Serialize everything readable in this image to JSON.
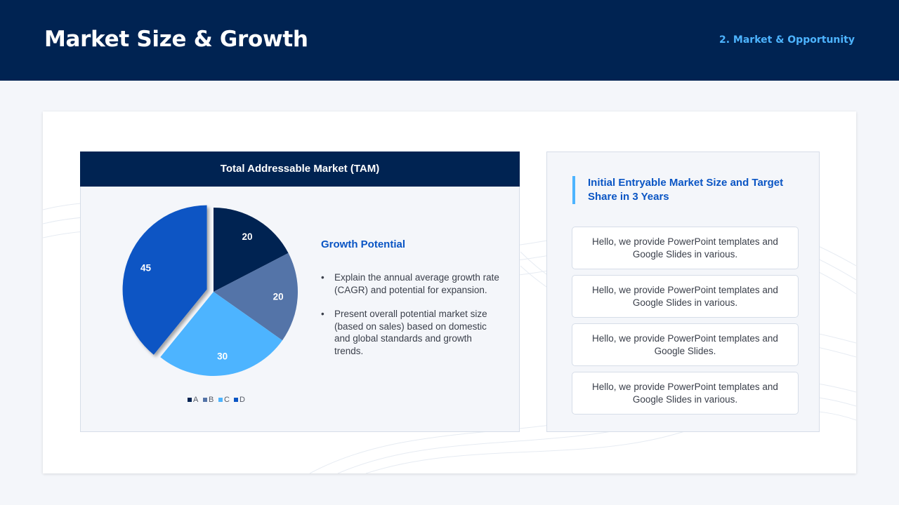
{
  "header": {
    "title": "Market Size & Growth",
    "section": "2. Market & Opportunity"
  },
  "tam": {
    "title": "Total Addressable Market (TAM)",
    "growth_title": "Growth Potential",
    "bullets": [
      "Explain the annual average growth rate (CAGR) and potential for expansion.",
      "Present overall potential market size (based on sales) based on domestic and global standards and growth trends."
    ]
  },
  "entry": {
    "title": "Initial Entryable Market Size and Target Share in 3 Years",
    "items": [
      "Hello, we provide PowerPoint templates and Google Slides in various.",
      "Hello, we provide PowerPoint templates and Google Slides in various.",
      "Hello, we provide PowerPoint templates and Google Slides.",
      "Hello, we provide PowerPoint templates and Google Slides in various."
    ]
  },
  "chart_data": {
    "type": "pie",
    "categories": [
      "A",
      "B",
      "C",
      "D"
    ],
    "values": [
      20,
      20,
      30,
      45
    ],
    "colors": [
      "#002352",
      "#5474a8",
      "#4db4ff",
      "#0a55c4"
    ],
    "exploded": "D",
    "legend": "bottom"
  }
}
